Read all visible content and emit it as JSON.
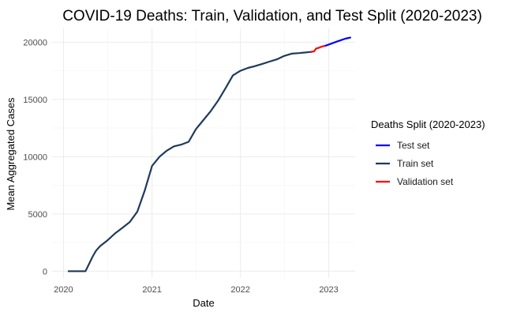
{
  "chart_data": {
    "type": "line",
    "title": "COVID-19 Deaths: Train, Validation, and Test Split (2020-2023)",
    "xlabel": "Date",
    "ylabel": "Mean Aggregated Cases",
    "xlim": [
      "2019-11-15",
      "2023-04-20"
    ],
    "ylim": [
      -600,
      21200
    ],
    "x_ticks": [
      "2020",
      "2021",
      "2022",
      "2023"
    ],
    "y_ticks": [
      "0",
      "5000",
      "10000",
      "15000",
      "20000"
    ],
    "grid": true,
    "legend": {
      "title": "Deaths Split (2020-2023)",
      "position": "right"
    },
    "series": [
      {
        "name": "Test set",
        "color": "#0000ff",
        "x": [
          "2022-12-20",
          "2023-01-15",
          "2023-02-10",
          "2023-03-10",
          "2023-03-31"
        ],
        "y": [
          19700,
          19900,
          20100,
          20300,
          20400
        ]
      },
      {
        "name": "Train set",
        "color": "#1f3a5a",
        "x": [
          "2020-01-22",
          "2020-03-01",
          "2020-04-01",
          "2020-04-15",
          "2020-05-01",
          "2020-05-15",
          "2020-06-01",
          "2020-07-01",
          "2020-08-01",
          "2020-09-01",
          "2020-10-01",
          "2020-11-01",
          "2020-12-01",
          "2021-01-01",
          "2021-02-01",
          "2021-03-01",
          "2021-04-01",
          "2021-05-01",
          "2021-06-01",
          "2021-07-01",
          "2021-08-01",
          "2021-09-01",
          "2021-10-01",
          "2021-11-01",
          "2021-12-01",
          "2022-01-01",
          "2022-02-01",
          "2022-03-01",
          "2022-04-01",
          "2022-05-01",
          "2022-06-01",
          "2022-07-01",
          "2022-08-01",
          "2022-09-01",
          "2022-10-20"
        ],
        "y": [
          0,
          0,
          0,
          600,
          1300,
          1800,
          2200,
          2700,
          3300,
          3800,
          4300,
          5200,
          7000,
          9200,
          10000,
          10500,
          10900,
          11050,
          11300,
          12400,
          13200,
          14000,
          14900,
          16000,
          17100,
          17500,
          17750,
          17900,
          18100,
          18300,
          18500,
          18800,
          19000,
          19050,
          19150
        ]
      },
      {
        "name": "Validation set",
        "color": "#ff0000",
        "x": [
          "2022-10-20",
          "2022-11-01",
          "2022-11-10",
          "2022-11-20",
          "2022-12-01",
          "2022-12-20"
        ],
        "y": [
          19150,
          19200,
          19450,
          19500,
          19600,
          19700
        ]
      }
    ]
  }
}
